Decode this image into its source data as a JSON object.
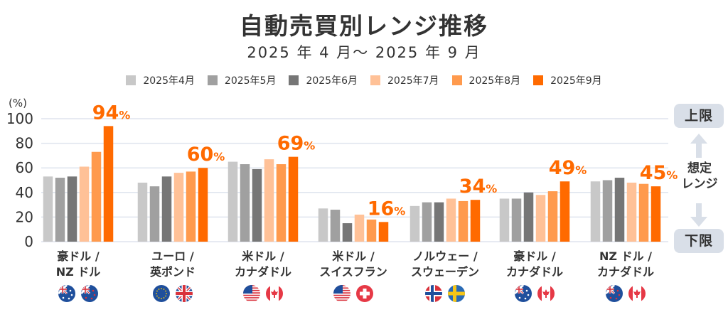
{
  "title": "自動売買別レンジ推移",
  "subtitle": "2025 年 4 月～ 2025 年 9 月",
  "side_panel": {
    "upper_label": "上限",
    "middle_label_line1": "想定",
    "middle_label_line2": "レンジ",
    "lower_label": "下限",
    "arrow_up_icon": "arrow-up-icon",
    "arrow_down_icon": "arrow-down-icon"
  },
  "colors": {
    "series": [
      "#c8c8c8",
      "#a0a0a0",
      "#767676",
      "#ffc197",
      "#ff9a4d",
      "#ff6a00"
    ],
    "label": "#ff6a00",
    "grid": "#dfe4ee",
    "axis_text": "#333333",
    "side_box": "#d9dfe8"
  },
  "chart_data": {
    "type": "bar",
    "title": "自動売買別レンジ推移",
    "subtitle": "2025 年 4 月～ 2025 年 9 月",
    "ylabel": "(%)",
    "xlabel": "",
    "ylim": [
      0,
      100
    ],
    "yticks": [
      0,
      20,
      40,
      60,
      80,
      100
    ],
    "grid": true,
    "legend_position": "top",
    "categories": [
      {
        "line1": "豪ドル /",
        "line2": "NZ ドル",
        "flags": [
          "australia-flag",
          "new-zealand-flag"
        ]
      },
      {
        "line1": "ユーロ /",
        "line2": "英ポンド",
        "flags": [
          "eu-flag",
          "uk-flag"
        ]
      },
      {
        "line1": "米ドル /",
        "line2": "カナダドル",
        "flags": [
          "us-flag",
          "canada-flag"
        ]
      },
      {
        "line1": "米ドル /",
        "line2": "スイスフラン",
        "flags": [
          "us-flag",
          "switzerland-flag"
        ]
      },
      {
        "line1": "ノルウェー /",
        "line2": "スウェーデン",
        "flags": [
          "norway-flag",
          "sweden-flag"
        ]
      },
      {
        "line1": "豪ドル /",
        "line2": "カナダドル",
        "flags": [
          "australia-flag",
          "canada-flag"
        ]
      },
      {
        "line1": "NZ ドル /",
        "line2": "カナダドル",
        "flags": [
          "new-zealand-flag",
          "canada-flag"
        ]
      }
    ],
    "series": [
      {
        "name": "2025年4月",
        "values": [
          53,
          48,
          65,
          27,
          29,
          35,
          49
        ]
      },
      {
        "name": "2025年5月",
        "values": [
          52,
          45,
          63,
          26,
          32,
          35,
          50
        ]
      },
      {
        "name": "2025年6月",
        "values": [
          53,
          53,
          59,
          15,
          32,
          40,
          52
        ]
      },
      {
        "name": "2025年7月",
        "values": [
          61,
          56,
          67,
          22,
          35,
          38,
          48
        ]
      },
      {
        "name": "2025年8月",
        "values": [
          73,
          57,
          63,
          18,
          33,
          41,
          47
        ]
      },
      {
        "name": "2025年9月",
        "values": [
          94,
          60,
          69,
          16,
          34,
          49,
          45
        ]
      }
    ],
    "data_labels": [
      {
        "value": "94",
        "unit": "%"
      },
      {
        "value": "60",
        "unit": "%"
      },
      {
        "value": "69",
        "unit": "%"
      },
      {
        "value": "16",
        "unit": "%"
      },
      {
        "value": "34",
        "unit": "%"
      },
      {
        "value": "49",
        "unit": "%"
      },
      {
        "value": "45",
        "unit": "%"
      }
    ]
  }
}
